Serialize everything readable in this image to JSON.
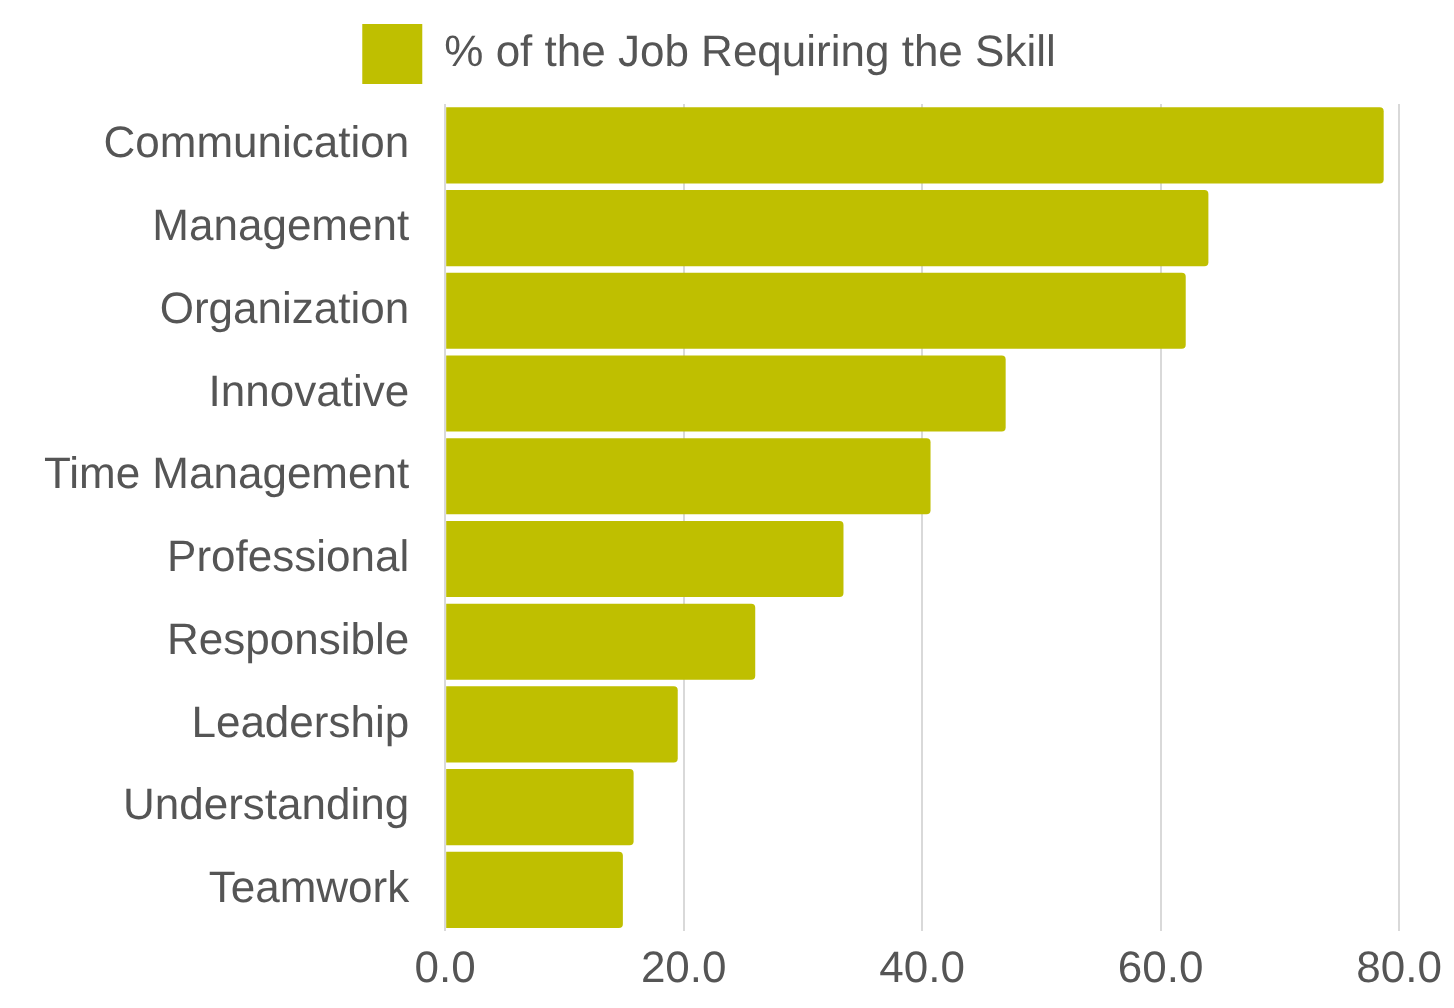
{
  "chart_data": {
    "type": "bar",
    "orientation": "horizontal",
    "categories": [
      "Communication",
      "Management",
      "Organization",
      "Innovative",
      "Time Management",
      "Professional",
      "Responsible",
      "Leadership",
      "Understanding",
      "Teamwork"
    ],
    "series": [
      {
        "name": "% of the Job Requiring the Skill",
        "color": "#bfbf00",
        "values": [
          78.7,
          64.0,
          62.1,
          47.0,
          40.7,
          33.4,
          26.0,
          19.5,
          15.8,
          14.9
        ]
      }
    ],
    "xlim": [
      0,
      80
    ],
    "xticks": [
      {
        "value": 0,
        "label": "0.0"
      },
      {
        "value": 20,
        "label": "20.0"
      },
      {
        "value": 40,
        "label": "40.0"
      },
      {
        "value": 60,
        "label": "60.0"
      },
      {
        "value": 80,
        "label": "80.0"
      }
    ],
    "grid": "x",
    "legend": "top"
  }
}
